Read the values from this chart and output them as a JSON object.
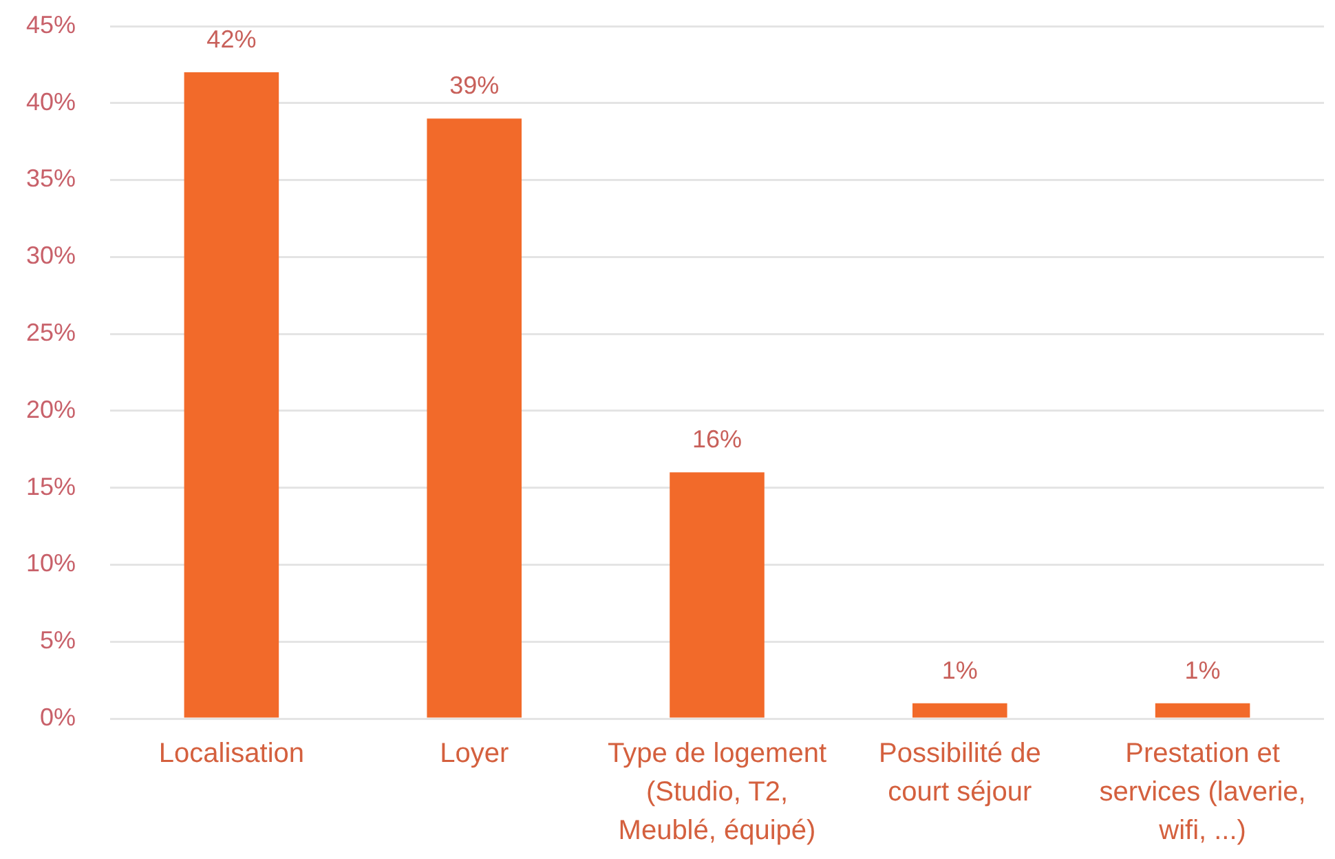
{
  "chart_data": {
    "type": "bar",
    "categories": [
      "Localisation",
      "Loyer",
      "Type de logement (Studio, T2, Meublé, équipé)",
      "Possibilité de court séjour",
      "Prestation et services (laverie, wifi, ...)"
    ],
    "values": [
      42,
      39,
      16,
      1,
      1
    ],
    "color": "#f26a2a",
    "value_labels": [
      "42%",
      "39%",
      "16%",
      "1%",
      "1%"
    ],
    "ylim": [
      0,
      45
    ],
    "yticks": [
      {
        "value": 0,
        "label": "0%"
      },
      {
        "value": 5,
        "label": "5%"
      },
      {
        "value": 10,
        "label": "10%"
      },
      {
        "value": 15,
        "label": "15%"
      },
      {
        "value": 20,
        "label": "20%"
      },
      {
        "value": 25,
        "label": "25%"
      },
      {
        "value": 30,
        "label": "30%"
      },
      {
        "value": 35,
        "label": "35%"
      },
      {
        "value": 40,
        "label": "40%"
      },
      {
        "value": 45,
        "label": "45%"
      }
    ],
    "grid": "y"
  }
}
